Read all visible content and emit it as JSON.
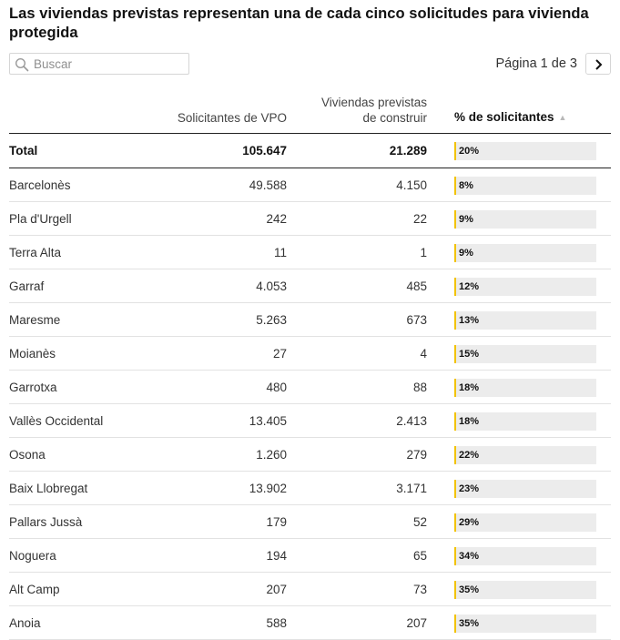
{
  "title": "Las viviendas previstas representan una de cada cinco solicitudes para vivienda protegida",
  "search": {
    "placeholder": "Buscar",
    "value": ""
  },
  "pager": {
    "text": "Página 1 de 3",
    "current": 1,
    "total": 3
  },
  "columns": {
    "name": "",
    "solicitantes": "Solicitantes de VPO",
    "viviendas_line1": "Viviendas previstas",
    "viviendas_line2": "de construir",
    "pct": "% de solicitantes",
    "sort_indicator": "▲"
  },
  "total_row": {
    "name": "Total",
    "solicitantes": "105.647",
    "viviendas": "21.289",
    "pct_label": "20%",
    "pct": 20
  },
  "rows": [
    {
      "name": "Barcelonès",
      "solicitantes": "49.588",
      "viviendas": "4.150",
      "pct_label": "8%",
      "pct": 8
    },
    {
      "name": "Pla d'Urgell",
      "solicitantes": "242",
      "viviendas": "22",
      "pct_label": "9%",
      "pct": 9
    },
    {
      "name": "Terra Alta",
      "solicitantes": "11",
      "viviendas": "1",
      "pct_label": "9%",
      "pct": 9
    },
    {
      "name": "Garraf",
      "solicitantes": "4.053",
      "viviendas": "485",
      "pct_label": "12%",
      "pct": 12
    },
    {
      "name": "Maresme",
      "solicitantes": "5.263",
      "viviendas": "673",
      "pct_label": "13%",
      "pct": 13
    },
    {
      "name": "Moianès",
      "solicitantes": "27",
      "viviendas": "4",
      "pct_label": "15%",
      "pct": 15
    },
    {
      "name": "Garrotxa",
      "solicitantes": "480",
      "viviendas": "88",
      "pct_label": "18%",
      "pct": 18
    },
    {
      "name": "Vallès Occidental",
      "solicitantes": "13.405",
      "viviendas": "2.413",
      "pct_label": "18%",
      "pct": 18
    },
    {
      "name": "Osona",
      "solicitantes": "1.260",
      "viviendas": "279",
      "pct_label": "22%",
      "pct": 22
    },
    {
      "name": "Baix Llobregat",
      "solicitantes": "13.902",
      "viviendas": "3.171",
      "pct_label": "23%",
      "pct": 23
    },
    {
      "name": "Pallars Jussà",
      "solicitantes": "179",
      "viviendas": "52",
      "pct_label": "29%",
      "pct": 29
    },
    {
      "name": "Noguera",
      "solicitantes": "194",
      "viviendas": "65",
      "pct_label": "34%",
      "pct": 34
    },
    {
      "name": "Alt Camp",
      "solicitantes": "207",
      "viviendas": "73",
      "pct_label": "35%",
      "pct": 35
    },
    {
      "name": "Anoia",
      "solicitantes": "588",
      "viviendas": "207",
      "pct_label": "35%",
      "pct": 35
    }
  ],
  "colors": {
    "accent": "#f2c200",
    "bar_track": "#ececec",
    "rule_dark": "#222222",
    "rule_light": "#e2e2e2"
  },
  "icons": {
    "search": "search-icon",
    "next": "chevron-right-icon",
    "sort": "sort-ascending-icon"
  }
}
